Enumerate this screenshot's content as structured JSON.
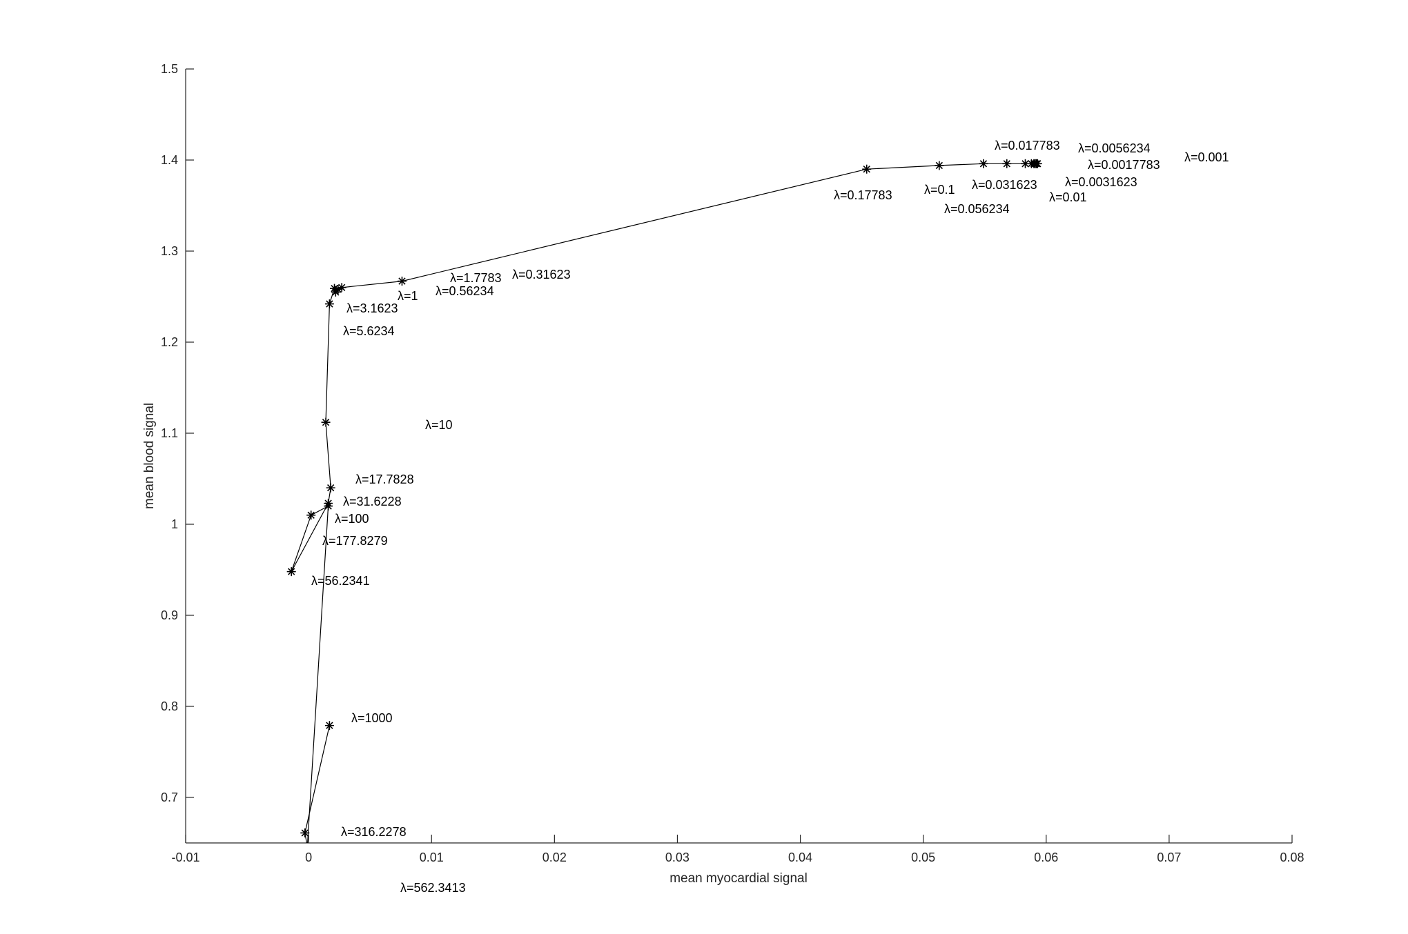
{
  "chart_data": {
    "type": "line",
    "title": "",
    "xlabel": "mean myocardial signal",
    "ylabel": "mean blood signal",
    "xlim": [
      -0.01,
      0.08
    ],
    "ylim": [
      0.65,
      1.5
    ],
    "xticks": [
      "-0.01",
      "0",
      "0.01",
      "0.02",
      "0.03",
      "0.04",
      "0.05",
      "0.06",
      "0.07",
      "0.08"
    ],
    "yticks": [
      "0.7",
      "0.8",
      "0.9",
      "1",
      "1.1",
      "1.2",
      "1.3",
      "1.4",
      "1.5"
    ],
    "grid": false,
    "marker": "asterisk",
    "line_color": "#000000",
    "series": [
      {
        "points": [
          {
            "x": 0.0593,
            "y": 1.396,
            "label": "λ=0.001"
          },
          {
            "x": 0.0592,
            "y": 1.396,
            "label": "λ=0.0017783"
          },
          {
            "x": 0.0591,
            "y": 1.396,
            "label": "λ=0.0031623"
          },
          {
            "x": 0.059,
            "y": 1.396,
            "label": "λ=0.0056234"
          },
          {
            "x": 0.0588,
            "y": 1.396,
            "label": "λ=0.01"
          },
          {
            "x": 0.0583,
            "y": 1.396,
            "label": "λ=0.017783"
          },
          {
            "x": 0.0568,
            "y": 1.396,
            "label": "λ=0.031623"
          },
          {
            "x": 0.0549,
            "y": 1.396,
            "label": "λ=0.056234"
          },
          {
            "x": 0.0513,
            "y": 1.394,
            "label": "λ=0.1"
          },
          {
            "x": 0.0454,
            "y": 1.39,
            "label": "λ=0.17783"
          },
          {
            "x": 0.0076,
            "y": 1.267,
            "label": "λ=0.31623"
          },
          {
            "x": 0.0027,
            "y": 1.26,
            "label": "λ=0.56234"
          },
          {
            "x": 0.0024,
            "y": 1.258,
            "label": "λ=1"
          },
          {
            "x": 0.0022,
            "y": 1.255,
            "label": "λ=1.7783"
          },
          {
            "x": 0.0021,
            "y": 1.259,
            "label": "λ=3.1623"
          },
          {
            "x": 0.0017,
            "y": 1.242,
            "label": "λ=5.6234"
          },
          {
            "x": 0.0014,
            "y": 1.112,
            "label": "λ=10"
          },
          {
            "x": 0.0018,
            "y": 1.04,
            "label": "λ=17.7828"
          },
          {
            "x": 0.0016,
            "y": 1.023,
            "label": "λ=31.6228"
          },
          {
            "x": -0.0014,
            "y": 0.948,
            "label": "λ=56.2341"
          },
          {
            "x": 0.0002,
            "y": 1.01,
            "label": "λ=100"
          },
          {
            "x": 0.0016,
            "y": 1.02,
            "label": "λ=177.8279"
          },
          {
            "x": -0.0001,
            "y": 0.646,
            "label": "λ=316.2278"
          },
          {
            "x": -0.0003,
            "y": 0.661,
            "label": "λ=562.3413"
          },
          {
            "x": 0.0017,
            "y": 0.779,
            "label": "λ=1000"
          }
        ]
      }
    ]
  }
}
